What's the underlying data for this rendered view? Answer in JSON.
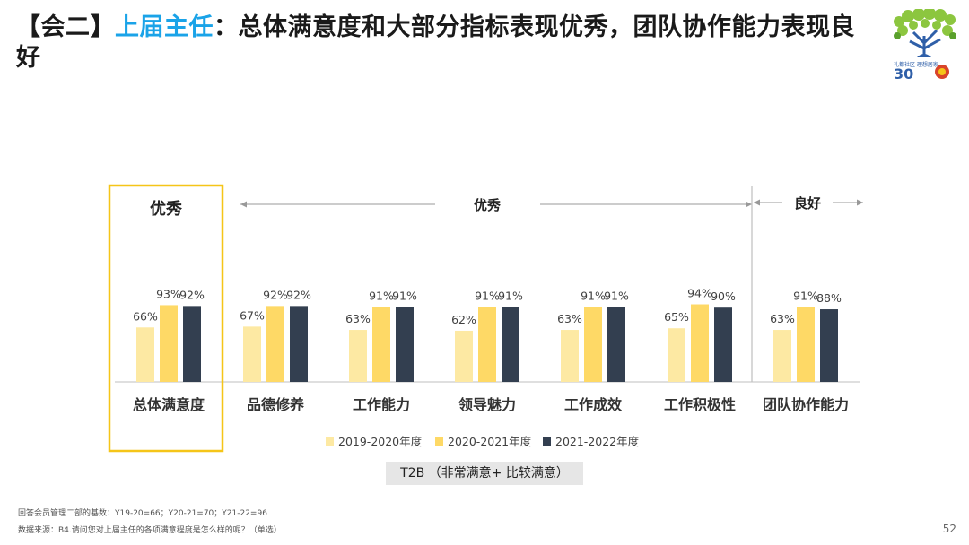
{
  "title": {
    "prefix": "【会二】",
    "accent": "上届主任",
    "rest": "：总体满意度和大部分指标表现优秀，团队协作能力表现良好"
  },
  "logo": {
    "icon": "tree-anniversary-logo-icon",
    "text": "礼都社区 理想居家",
    "number": "30"
  },
  "chart_data": {
    "type": "bar",
    "categories": [
      "总体满意度",
      "品德修养",
      "工作能力",
      "领导魅力",
      "工作成效",
      "工作积极性",
      "团队协作能力"
    ],
    "series": [
      {
        "name": "2019-2020年度",
        "values": [
          66,
          67,
          63,
          62,
          63,
          65,
          63
        ],
        "color": "#fde9a3"
      },
      {
        "name": "2020-2021年度",
        "values": [
          93,
          92,
          91,
          91,
          91,
          94,
          91
        ],
        "color": "#fed966"
      },
      {
        "name": "2021-2022年度",
        "values": [
          92,
          92,
          91,
          91,
          91,
          90,
          88
        ],
        "color": "#333f50"
      }
    ],
    "value_suffix": "%",
    "ylim": [
      0,
      100
    ],
    "groups": [
      {
        "label": "优秀",
        "type": "highlight-box",
        "range": [
          0,
          0
        ]
      },
      {
        "label": "优秀",
        "type": "arrow-span",
        "range": [
          1,
          5
        ]
      },
      {
        "label": "良好",
        "type": "arrow-span",
        "range": [
          6,
          6
        ]
      }
    ],
    "metric_label": "T2B （非常满意+ 比较满意）"
  },
  "footer": {
    "base": "回答会员管理二部的基数：Y19-20=66；Y20-21=70；Y21-22=96",
    "source": "数据来源：B4.请问您对上届主任的各项满意程度是怎么样的呢？（单选）",
    "page": "52"
  },
  "colors": {
    "accent": "#1aa3e8",
    "highlight": "#f5c518",
    "arrow": "#999999"
  }
}
